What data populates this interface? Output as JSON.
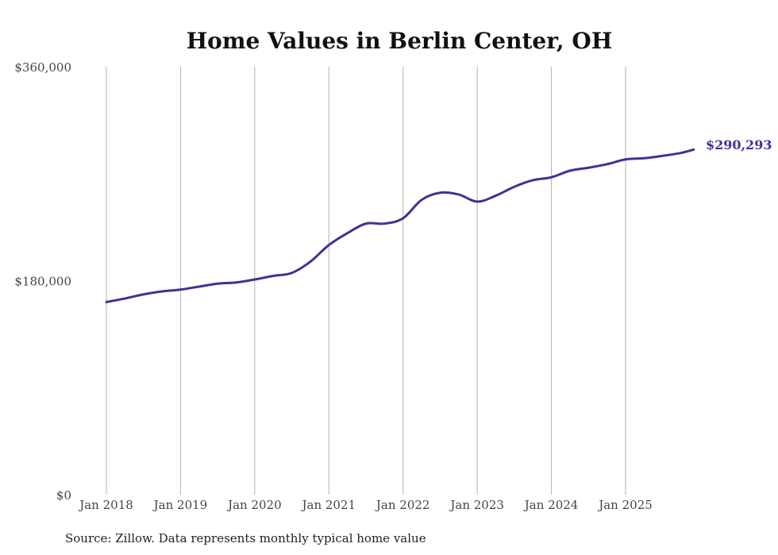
{
  "chart_data": {
    "type": "line",
    "title": "Home Values in Berlin Center, OH",
    "xlabel": "",
    "ylabel": "",
    "ylim": [
      0,
      360000
    ],
    "xlim": [
      2018.0,
      2026.2
    ],
    "grid": "vertical",
    "y_ticks": [
      {
        "value": 0,
        "label": "$0"
      },
      {
        "value": 180000,
        "label": "$180,000"
      },
      {
        "value": 360000,
        "label": "$360,000"
      }
    ],
    "x_ticks": [
      {
        "value": 2018,
        "label": "Jan 2018"
      },
      {
        "value": 2019,
        "label": "Jan 2019"
      },
      {
        "value": 2020,
        "label": "Jan 2020"
      },
      {
        "value": 2021,
        "label": "Jan 2021"
      },
      {
        "value": 2022,
        "label": "Jan 2022"
      },
      {
        "value": 2023,
        "label": "Jan 2023"
      },
      {
        "value": 2024,
        "label": "Jan 2024"
      },
      {
        "value": 2025,
        "label": "Jan 2025"
      }
    ],
    "series": [
      {
        "name": "Typical home value",
        "color": "#3b3593",
        "end_label": "$290,293",
        "x": [
          2018.0,
          2018.25,
          2018.5,
          2018.75,
          2019.0,
          2019.25,
          2019.5,
          2019.75,
          2020.0,
          2020.25,
          2020.5,
          2020.75,
          2021.0,
          2021.25,
          2021.5,
          2021.75,
          2022.0,
          2022.25,
          2022.5,
          2022.75,
          2023.0,
          2023.25,
          2023.5,
          2023.75,
          2024.0,
          2024.25,
          2024.5,
          2024.75,
          2025.0,
          2025.25,
          2025.5,
          2025.75,
          2025.92
        ],
        "values": [
          162000,
          165000,
          168500,
          171000,
          172500,
          175000,
          177500,
          178500,
          181000,
          184000,
          186500,
          196000,
          210000,
          220000,
          228000,
          228000,
          232500,
          248000,
          254000,
          252500,
          246500,
          251500,
          259000,
          264500,
          267000,
          272500,
          275000,
          278000,
          282000,
          283000,
          285000,
          287500,
          290293
        ]
      }
    ]
  },
  "source": "Source: Zillow. Data represents monthly typical home value"
}
